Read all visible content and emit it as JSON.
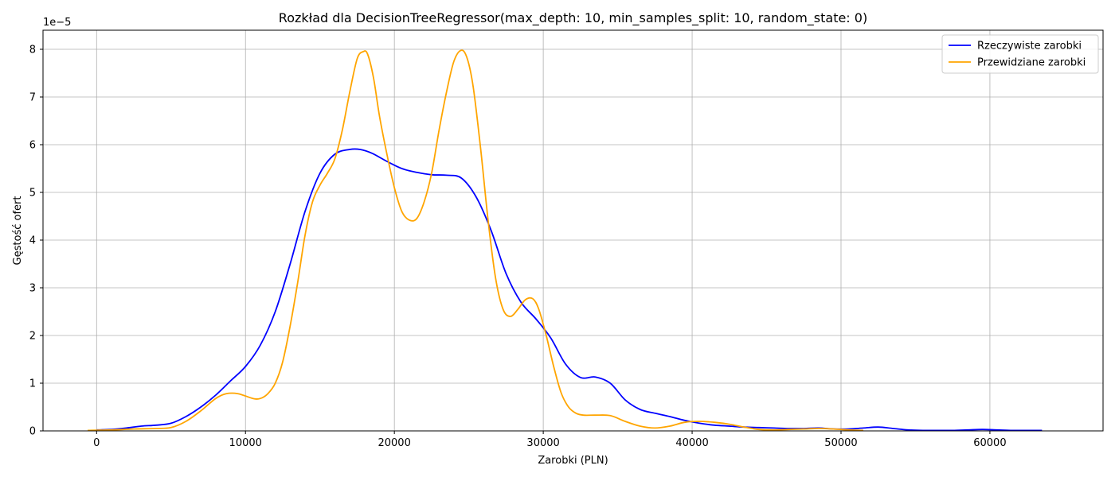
{
  "chart_data": {
    "type": "line",
    "title": "Rozkład dla DecisionTreeRegressor(max_depth: 10, min_samples_split: 10, random_state: 0)",
    "xlabel": "Zarobki (PLN)",
    "ylabel": "Gęstość ofert",
    "y_offset_text": "1e−5",
    "y_scale_exponent": -5,
    "xlim": [
      -3600,
      67600
    ],
    "ylim": [
      0,
      8.4
    ],
    "xticks": [
      0,
      10000,
      20000,
      30000,
      40000,
      50000,
      60000
    ],
    "xtick_labels": [
      "0",
      "10000",
      "20000",
      "30000",
      "40000",
      "50000",
      "60000"
    ],
    "yticks": [
      0,
      1,
      2,
      3,
      4,
      5,
      6,
      7,
      8
    ],
    "ytick_labels": [
      "0",
      "1",
      "2",
      "3",
      "4",
      "5",
      "6",
      "7",
      "8"
    ],
    "grid": true,
    "legend_position": "top-right",
    "series": [
      {
        "name": "Rzeczywiste zarobki",
        "color": "#0000ff",
        "x": [
          0,
          1000,
          2000,
          3000,
          4000,
          5000,
          6000,
          7000,
          8000,
          9000,
          10000,
          11000,
          12000,
          13000,
          14000,
          15000,
          16000,
          17000,
          17700,
          18500,
          19500,
          20500,
          21500,
          22500,
          23500,
          24500,
          25500,
          26500,
          27500,
          28500,
          29500,
          30500,
          31500,
          32500,
          33500,
          34500,
          35500,
          36500,
          37500,
          38500,
          39500,
          40500,
          41500,
          42500,
          43500,
          44500,
          45500,
          46500,
          47500,
          48500,
          49500,
          50500,
          51500,
          52500,
          53500,
          54500,
          55500,
          56500,
          57500,
          58500,
          59500,
          60500,
          61500,
          62500,
          63500
        ],
        "values": [
          0.02,
          0.03,
          0.06,
          0.1,
          0.12,
          0.16,
          0.3,
          0.5,
          0.75,
          1.05,
          1.35,
          1.8,
          2.5,
          3.5,
          4.6,
          5.4,
          5.8,
          5.9,
          5.9,
          5.82,
          5.65,
          5.5,
          5.42,
          5.37,
          5.36,
          5.3,
          4.9,
          4.2,
          3.3,
          2.7,
          2.35,
          1.95,
          1.4,
          1.12,
          1.13,
          1.0,
          0.65,
          0.45,
          0.37,
          0.3,
          0.22,
          0.16,
          0.12,
          0.1,
          0.08,
          0.07,
          0.06,
          0.05,
          0.05,
          0.06,
          0.04,
          0.04,
          0.06,
          0.08,
          0.05,
          0.02,
          0.01,
          0.01,
          0.01,
          0.02,
          0.03,
          0.02,
          0.01,
          0.01,
          0.01
        ]
      },
      {
        "name": "Przewidziane zarobki",
        "color": "#ffa500",
        "x": [
          -600,
          1000,
          2500,
          4000,
          5000,
          6000,
          7000,
          8000,
          8700,
          9500,
          10500,
          11000,
          11500,
          12000,
          12500,
          13000,
          13500,
          14000,
          14500,
          15000,
          15500,
          16000,
          16500,
          17000,
          17500,
          17900,
          18200,
          18600,
          19000,
          19500,
          20000,
          20500,
          21000,
          21500,
          22000,
          22500,
          23000,
          23500,
          24000,
          24500,
          24900,
          25300,
          25800,
          26300,
          26800,
          27300,
          27800,
          28300,
          28800,
          29300,
          29700,
          30200,
          30700,
          31200,
          31700,
          32200,
          32700,
          33500,
          34500,
          35500,
          36500,
          37500,
          38500,
          39500,
          40500,
          41500,
          42500,
          43500,
          44500,
          45500,
          46500,
          47500,
          48500,
          49500,
          50500,
          51500
        ],
        "values": [
          0.01,
          0.02,
          0.04,
          0.05,
          0.07,
          0.2,
          0.42,
          0.68,
          0.78,
          0.78,
          0.68,
          0.68,
          0.78,
          1.0,
          1.45,
          2.2,
          3.1,
          4.1,
          4.8,
          5.15,
          5.4,
          5.7,
          6.3,
          7.1,
          7.8,
          7.95,
          7.9,
          7.4,
          6.6,
          5.8,
          5.1,
          4.6,
          4.42,
          4.45,
          4.8,
          5.4,
          6.3,
          7.1,
          7.75,
          7.98,
          7.8,
          7.2,
          5.9,
          4.4,
          3.2,
          2.55,
          2.4,
          2.55,
          2.75,
          2.77,
          2.55,
          2.0,
          1.35,
          0.8,
          0.5,
          0.37,
          0.33,
          0.33,
          0.32,
          0.2,
          0.1,
          0.06,
          0.1,
          0.18,
          0.2,
          0.18,
          0.14,
          0.08,
          0.03,
          0.02,
          0.03,
          0.04,
          0.05,
          0.04,
          0.02,
          0.01
        ]
      }
    ]
  }
}
